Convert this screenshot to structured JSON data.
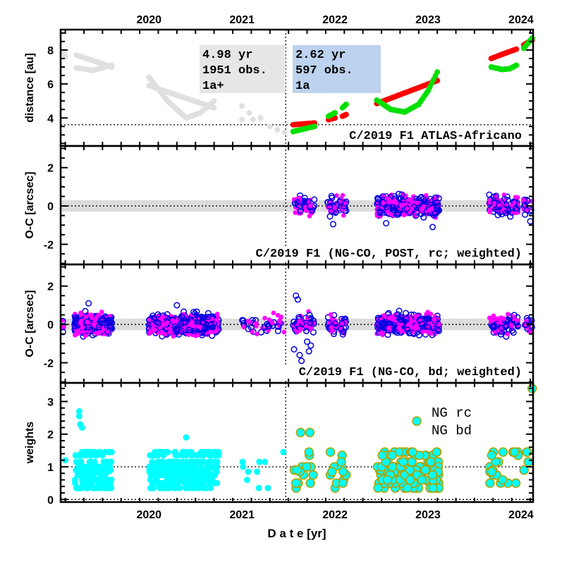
{
  "chart_data": {
    "type": "scatter",
    "xlabel": "D a t e [yr]",
    "xlim": [
      2019.05,
      2024.13
    ],
    "x_ticks": [
      "2020",
      "2021",
      "2022",
      "2023",
      "2024"
    ],
    "x_tick_values": [
      2020,
      2021,
      2022,
      2023,
      2024
    ],
    "split_epoch": 2021.47,
    "colors": {
      "gray": "#e0e0e0",
      "helio": "#ff0000",
      "geo": "#00e000",
      "magenta": "#ff00ff",
      "blue": "#0000e0",
      "cyan": "#00ffff",
      "olive": "#b0a000",
      "box_gray": "#e6e6e6",
      "box_blue": "#bcd2ee"
    },
    "panels": [
      {
        "id": "distance",
        "ylabel": "distance [au]",
        "ylim": [
          2.35,
          9.2
        ],
        "y_ticks": [
          4,
          6,
          8
        ],
        "ref_line": 3.6,
        "title": "C/2019 F1 ATLAS-Africano",
        "boxes": [
          {
            "lines": [
              "4.98 yr",
              "1951 obs.",
              "1a+"
            ],
            "color": "box_gray"
          },
          {
            "lines": [
              "2.62 yr",
              "597 obs.",
              "1a"
            ],
            "color": "box_blue"
          }
        ],
        "series": [
          {
            "name": "pre-fit distances",
            "color": "gray",
            "segments": [
              [
                [
                  2019.08,
                  7.9
                ],
                [
                  2019.1,
                  7.6
                ]
              ],
              [
                [
                  2019.22,
                  7.7
                ],
                [
                  2019.6,
                  7.0
                ]
              ],
              [
                [
                  2019.22,
                  6.95
                ],
                [
                  2019.4,
                  6.8
                ],
                [
                  2019.6,
                  7.1
                ]
              ],
              [
                [
                  2020.0,
                  5.9
                ],
                [
                  2020.7,
                  4.6
                ]
              ],
              [
                [
                  2020.0,
                  6.4
                ],
                [
                  2020.2,
                  5.0
                ],
                [
                  2020.4,
                  4.0
                ],
                [
                  2020.55,
                  4.3
                ],
                [
                  2020.7,
                  5.0
                ]
              ]
            ],
            "points": [
              [
                2021.0,
                4.7
              ],
              [
                2021.0,
                3.9
              ],
              [
                2021.08,
                4.3
              ],
              [
                2021.12,
                3.9
              ],
              [
                2021.2,
                4.0
              ],
              [
                2021.3,
                3.5
              ],
              [
                2021.38,
                3.3
              ],
              [
                2021.46,
                3.15
              ]
            ]
          },
          {
            "name": "heliocentric",
            "color": "helio",
            "segments": [
              [
                [
                  2021.55,
                  3.6
                ],
                [
                  2021.78,
                  3.7
                ]
              ],
              [
                [
                  2021.93,
                  3.9
                ],
                [
                  2022.0,
                  4.0
                ]
              ],
              [
                [
                  2022.08,
                  4.1
                ],
                [
                  2022.12,
                  4.2
                ]
              ],
              [
                [
                  2022.45,
                  4.85
                ],
                [
                  2023.1,
                  6.2
                ]
              ],
              [
                [
                  2023.68,
                  7.5
                ],
                [
                  2023.8,
                  7.75
                ],
                [
                  2023.95,
                  8.05
                ]
              ],
              [
                [
                  2024.03,
                  8.3
                ],
                [
                  2024.12,
                  8.6
                ]
              ]
            ]
          },
          {
            "name": "geocentric",
            "color": "geo",
            "segments": [
              [
                [
                  2021.55,
                  3.2
                ],
                [
                  2021.78,
                  3.5
                ]
              ],
              [
                [
                  2021.93,
                  4.1
                ],
                [
                  2022.0,
                  4.3
                ]
              ],
              [
                [
                  2022.08,
                  4.6
                ],
                [
                  2022.12,
                  4.8
                ]
              ],
              [
                [
                  2022.45,
                  5.05
                ],
                [
                  2022.6,
                  4.5
                ],
                [
                  2022.75,
                  4.35
                ],
                [
                  2022.9,
                  4.8
                ],
                [
                  2023.0,
                  5.6
                ],
                [
                  2023.1,
                  6.7
                ]
              ],
              [
                [
                  2023.68,
                  7.0
                ],
                [
                  2023.8,
                  6.85
                ],
                [
                  2023.88,
                  6.9
                ],
                [
                  2023.95,
                  7.1
                ]
              ],
              [
                [
                  2024.03,
                  8.1
                ],
                [
                  2024.12,
                  8.7
                ]
              ]
            ]
          }
        ]
      },
      {
        "id": "oc-rc",
        "ylabel": "O-C [arcsec]",
        "ylim": [
          -3.05,
          3.13
        ],
        "y_ticks": [
          -2,
          0,
          2
        ],
        "band": 0.3,
        "title": "C/2019 F1 (NG-CO, POST, rc; weighted)",
        "clusters": [
          [
            2021.55,
            2021.78,
            30
          ],
          [
            2021.92,
            2022.02,
            18
          ],
          [
            2022.05,
            2022.12,
            14
          ],
          [
            2022.45,
            2023.12,
            260
          ],
          [
            2023.65,
            2023.97,
            50
          ],
          [
            2024.02,
            2024.12,
            10
          ]
        ],
        "spread": 0.4,
        "outliers": [
          [
            2021.98,
            -0.95
          ],
          [
            2022.55,
            -0.9
          ],
          [
            2023.05,
            -1.1
          ],
          [
            2024.1,
            -0.8
          ]
        ]
      },
      {
        "id": "oc-bd",
        "ylabel": "O-C [arcsec]",
        "ylim": [
          -3.05,
          3.13
        ],
        "y_ticks": [
          -2,
          0,
          2
        ],
        "band": 0.3,
        "title": "C/2019 F1 (NG-CO, bd; weighted)",
        "clusters": [
          [
            2019.07,
            2019.1,
            3
          ],
          [
            2019.2,
            2019.6,
            260
          ],
          [
            2020.0,
            2020.75,
            400
          ],
          [
            2021.0,
            2021.47,
            25
          ],
          [
            2021.55,
            2021.78,
            30
          ],
          [
            2021.92,
            2022.02,
            18
          ],
          [
            2022.05,
            2022.12,
            14
          ],
          [
            2022.45,
            2023.12,
            260
          ],
          [
            2023.65,
            2023.97,
            50
          ],
          [
            2024.02,
            2024.12,
            10
          ]
        ],
        "spread": 0.4,
        "outliers": [
          [
            2021.58,
            1.5
          ],
          [
            2021.6,
            1.3
          ],
          [
            2021.56,
            -1.3
          ],
          [
            2021.62,
            -1.6
          ],
          [
            2021.64,
            -1.9
          ],
          [
            2021.72,
            -1.4
          ],
          [
            2021.74,
            -1.1
          ],
          [
            2021.7,
            -0.9
          ],
          [
            2019.35,
            1.1
          ],
          [
            2020.3,
            1.0
          ]
        ]
      },
      {
        "id": "weights",
        "ylabel": "weights",
        "ylim": [
          -0.08,
          3.57
        ],
        "y_ticks": [
          0,
          1,
          2,
          3
        ],
        "ref_lines": [
          0,
          1
        ],
        "legend": [
          {
            "label": "NG rc",
            "color": "olive"
          },
          {
            "label": "NG bd",
            "color": "cyan"
          }
        ],
        "legend_position": "top-right",
        "clusters": [
          [
            2019.2,
            2019.6,
            200,
            "pre"
          ],
          [
            2020.0,
            2020.75,
            300,
            "pre"
          ],
          [
            2021.0,
            2021.47,
            10,
            "pre"
          ],
          [
            2021.55,
            2021.78,
            14,
            "post"
          ],
          [
            2021.92,
            2022.12,
            14,
            "post"
          ],
          [
            2022.45,
            2023.12,
            140,
            "post"
          ],
          [
            2023.65,
            2023.97,
            20,
            "post"
          ],
          [
            2024.02,
            2024.12,
            4,
            "post"
          ]
        ],
        "levels": [
          0.35,
          0.5,
          0.6,
          0.75,
          0.85,
          0.9,
          1.0,
          1.15,
          1.35,
          1.45
        ],
        "outliers": [
          [
            2019.1,
            1.2,
            "pre"
          ],
          [
            2019.25,
            2.7,
            "pre"
          ],
          [
            2019.25,
            2.55,
            "pre"
          ],
          [
            2019.26,
            2.3,
            "pre"
          ],
          [
            2019.28,
            2.2,
            "pre"
          ],
          [
            2020.4,
            1.9,
            "pre"
          ],
          [
            2021.63,
            2.05,
            "post"
          ],
          [
            2021.73,
            2.05,
            "post"
          ],
          [
            2022.88,
            2.4,
            "post"
          ],
          [
            2024.12,
            3.4,
            "post"
          ]
        ]
      }
    ]
  }
}
